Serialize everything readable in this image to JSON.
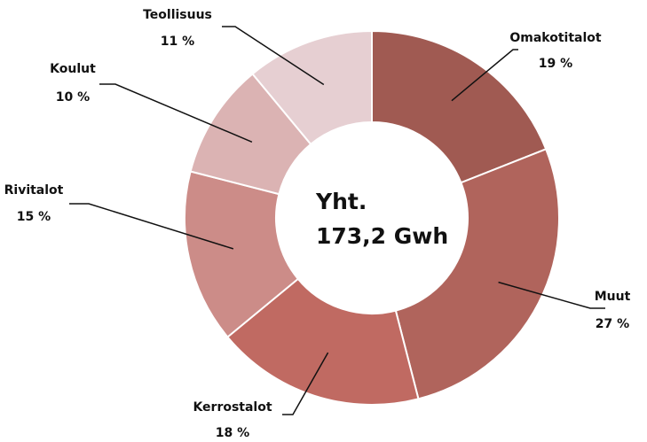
{
  "chart_data": {
    "type": "donut",
    "categories": [
      "Omakotitalot",
      "Muut",
      "Kerrostalot",
      "Rivitalot",
      "Koulut",
      "Teollisuus"
    ],
    "values": [
      19,
      27,
      18,
      15,
      10,
      11
    ],
    "value_labels": [
      "19 %",
      "27 %",
      "18 %",
      "15 %",
      "10 %",
      "11 %"
    ],
    "colors": [
      "#a05a52",
      "#b0645c",
      "#c06a62",
      "#cc8c88",
      "#dbb3b3",
      "#e6cfd2"
    ],
    "center_text": [
      "Yht.",
      "173,2 Gwh"
    ]
  }
}
